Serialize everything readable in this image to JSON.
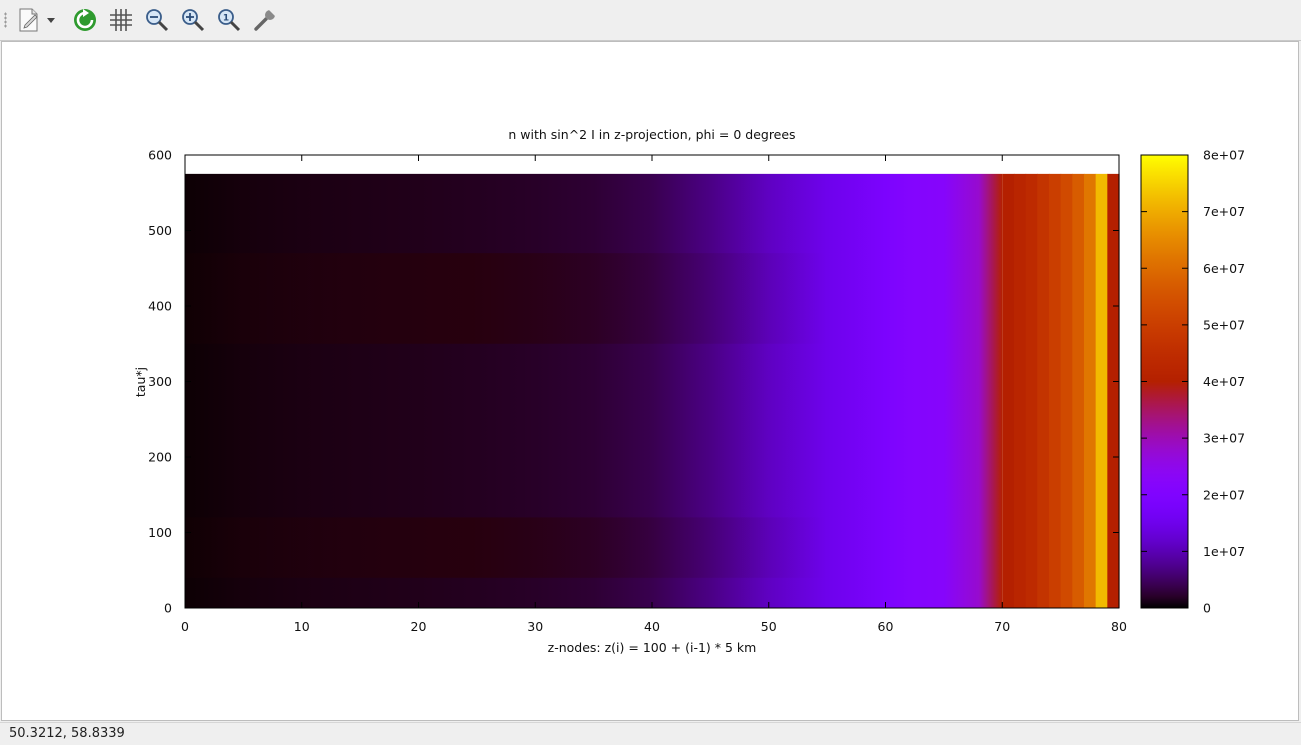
{
  "toolbar": {
    "buttons": [
      {
        "name": "export-icon"
      },
      {
        "name": "dropdown-arrow-icon"
      },
      {
        "name": "replot-icon"
      },
      {
        "name": "grid-icon"
      },
      {
        "name": "zoom-out-icon"
      },
      {
        "name": "zoom-in-icon"
      },
      {
        "name": "zoom-reset-icon"
      },
      {
        "name": "settings-wrench-icon"
      }
    ]
  },
  "status": {
    "coordinates": "50.3212,  58.8339"
  },
  "chart_data": {
    "type": "heatmap",
    "title": "n with sin^2 I in z-projection, phi = 0 degrees",
    "xlabel": "z-nodes: z(i) = 100 + (i-1) * 5 km",
    "ylabel": "tau*j",
    "xlim": [
      0,
      80
    ],
    "ylim": [
      0,
      600
    ],
    "data_ymax": 575,
    "xticks": [
      "0",
      "10",
      "20",
      "30",
      "40",
      "50",
      "60",
      "70",
      "80"
    ],
    "yticks": [
      "0",
      "100",
      "200",
      "300",
      "400",
      "500",
      "600"
    ],
    "colorbar": {
      "range": [
        0,
        80000000
      ],
      "ticks": [
        "0",
        "1e+07",
        "2e+07",
        "3e+07",
        "4e+07",
        "5e+07",
        "6e+07",
        "7e+07",
        "8e+07"
      ]
    },
    "z_profile": {
      "x": [
        0,
        5,
        10,
        15,
        20,
        25,
        30,
        35,
        40,
        45,
        50,
        55,
        60,
        62,
        65,
        68,
        70,
        71,
        72,
        73,
        74,
        75,
        76,
        77,
        78,
        79,
        80
      ],
      "value": [
        200000,
        600000,
        900000,
        1100000,
        1300000,
        1600000,
        2000000,
        2600000,
        4000000,
        7000000,
        11000000,
        15000000,
        19000000,
        21000000,
        22000000,
        28000000,
        40000000,
        42000000,
        44000000,
        47000000,
        50000000,
        53000000,
        57000000,
        62000000,
        72000000,
        40000000,
        40000000
      ]
    },
    "colormap": "gnuplot"
  }
}
